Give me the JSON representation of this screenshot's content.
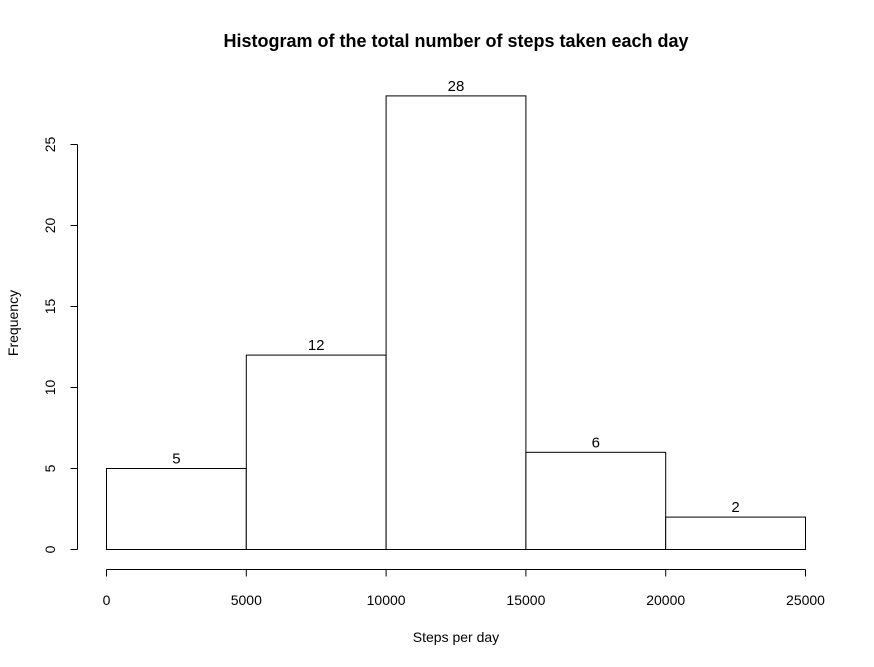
{
  "chart_data": {
    "type": "bar",
    "title": "Histogram of the total number of steps taken each day",
    "xlabel": "Steps per day",
    "ylabel": "Frequency",
    "bins": [
      {
        "from": 0,
        "to": 5000,
        "count": 5,
        "label": "5"
      },
      {
        "from": 5000,
        "to": 10000,
        "count": 12,
        "label": "12"
      },
      {
        "from": 10000,
        "to": 15000,
        "count": 28,
        "label": "28"
      },
      {
        "from": 15000,
        "to": 20000,
        "count": 6,
        "label": "6"
      },
      {
        "from": 20000,
        "to": 25000,
        "count": 2,
        "label": "2"
      }
    ],
    "xlim": [
      0,
      25000
    ],
    "ylim": [
      0,
      28
    ],
    "xticks": [
      {
        "value": 0,
        "label": "0"
      },
      {
        "value": 5000,
        "label": "5000"
      },
      {
        "value": 10000,
        "label": "10000"
      },
      {
        "value": 15000,
        "label": "15000"
      },
      {
        "value": 20000,
        "label": "20000"
      },
      {
        "value": 25000,
        "label": "25000"
      }
    ],
    "yticks": [
      {
        "value": 0,
        "label": "0"
      },
      {
        "value": 5,
        "label": "5"
      },
      {
        "value": 10,
        "label": "10"
      },
      {
        "value": 15,
        "label": "15"
      },
      {
        "value": 20,
        "label": "20"
      },
      {
        "value": 25,
        "label": "25"
      }
    ],
    "grid": false,
    "bar_fill": "#ffffff",
    "bar_stroke": "#000000"
  }
}
